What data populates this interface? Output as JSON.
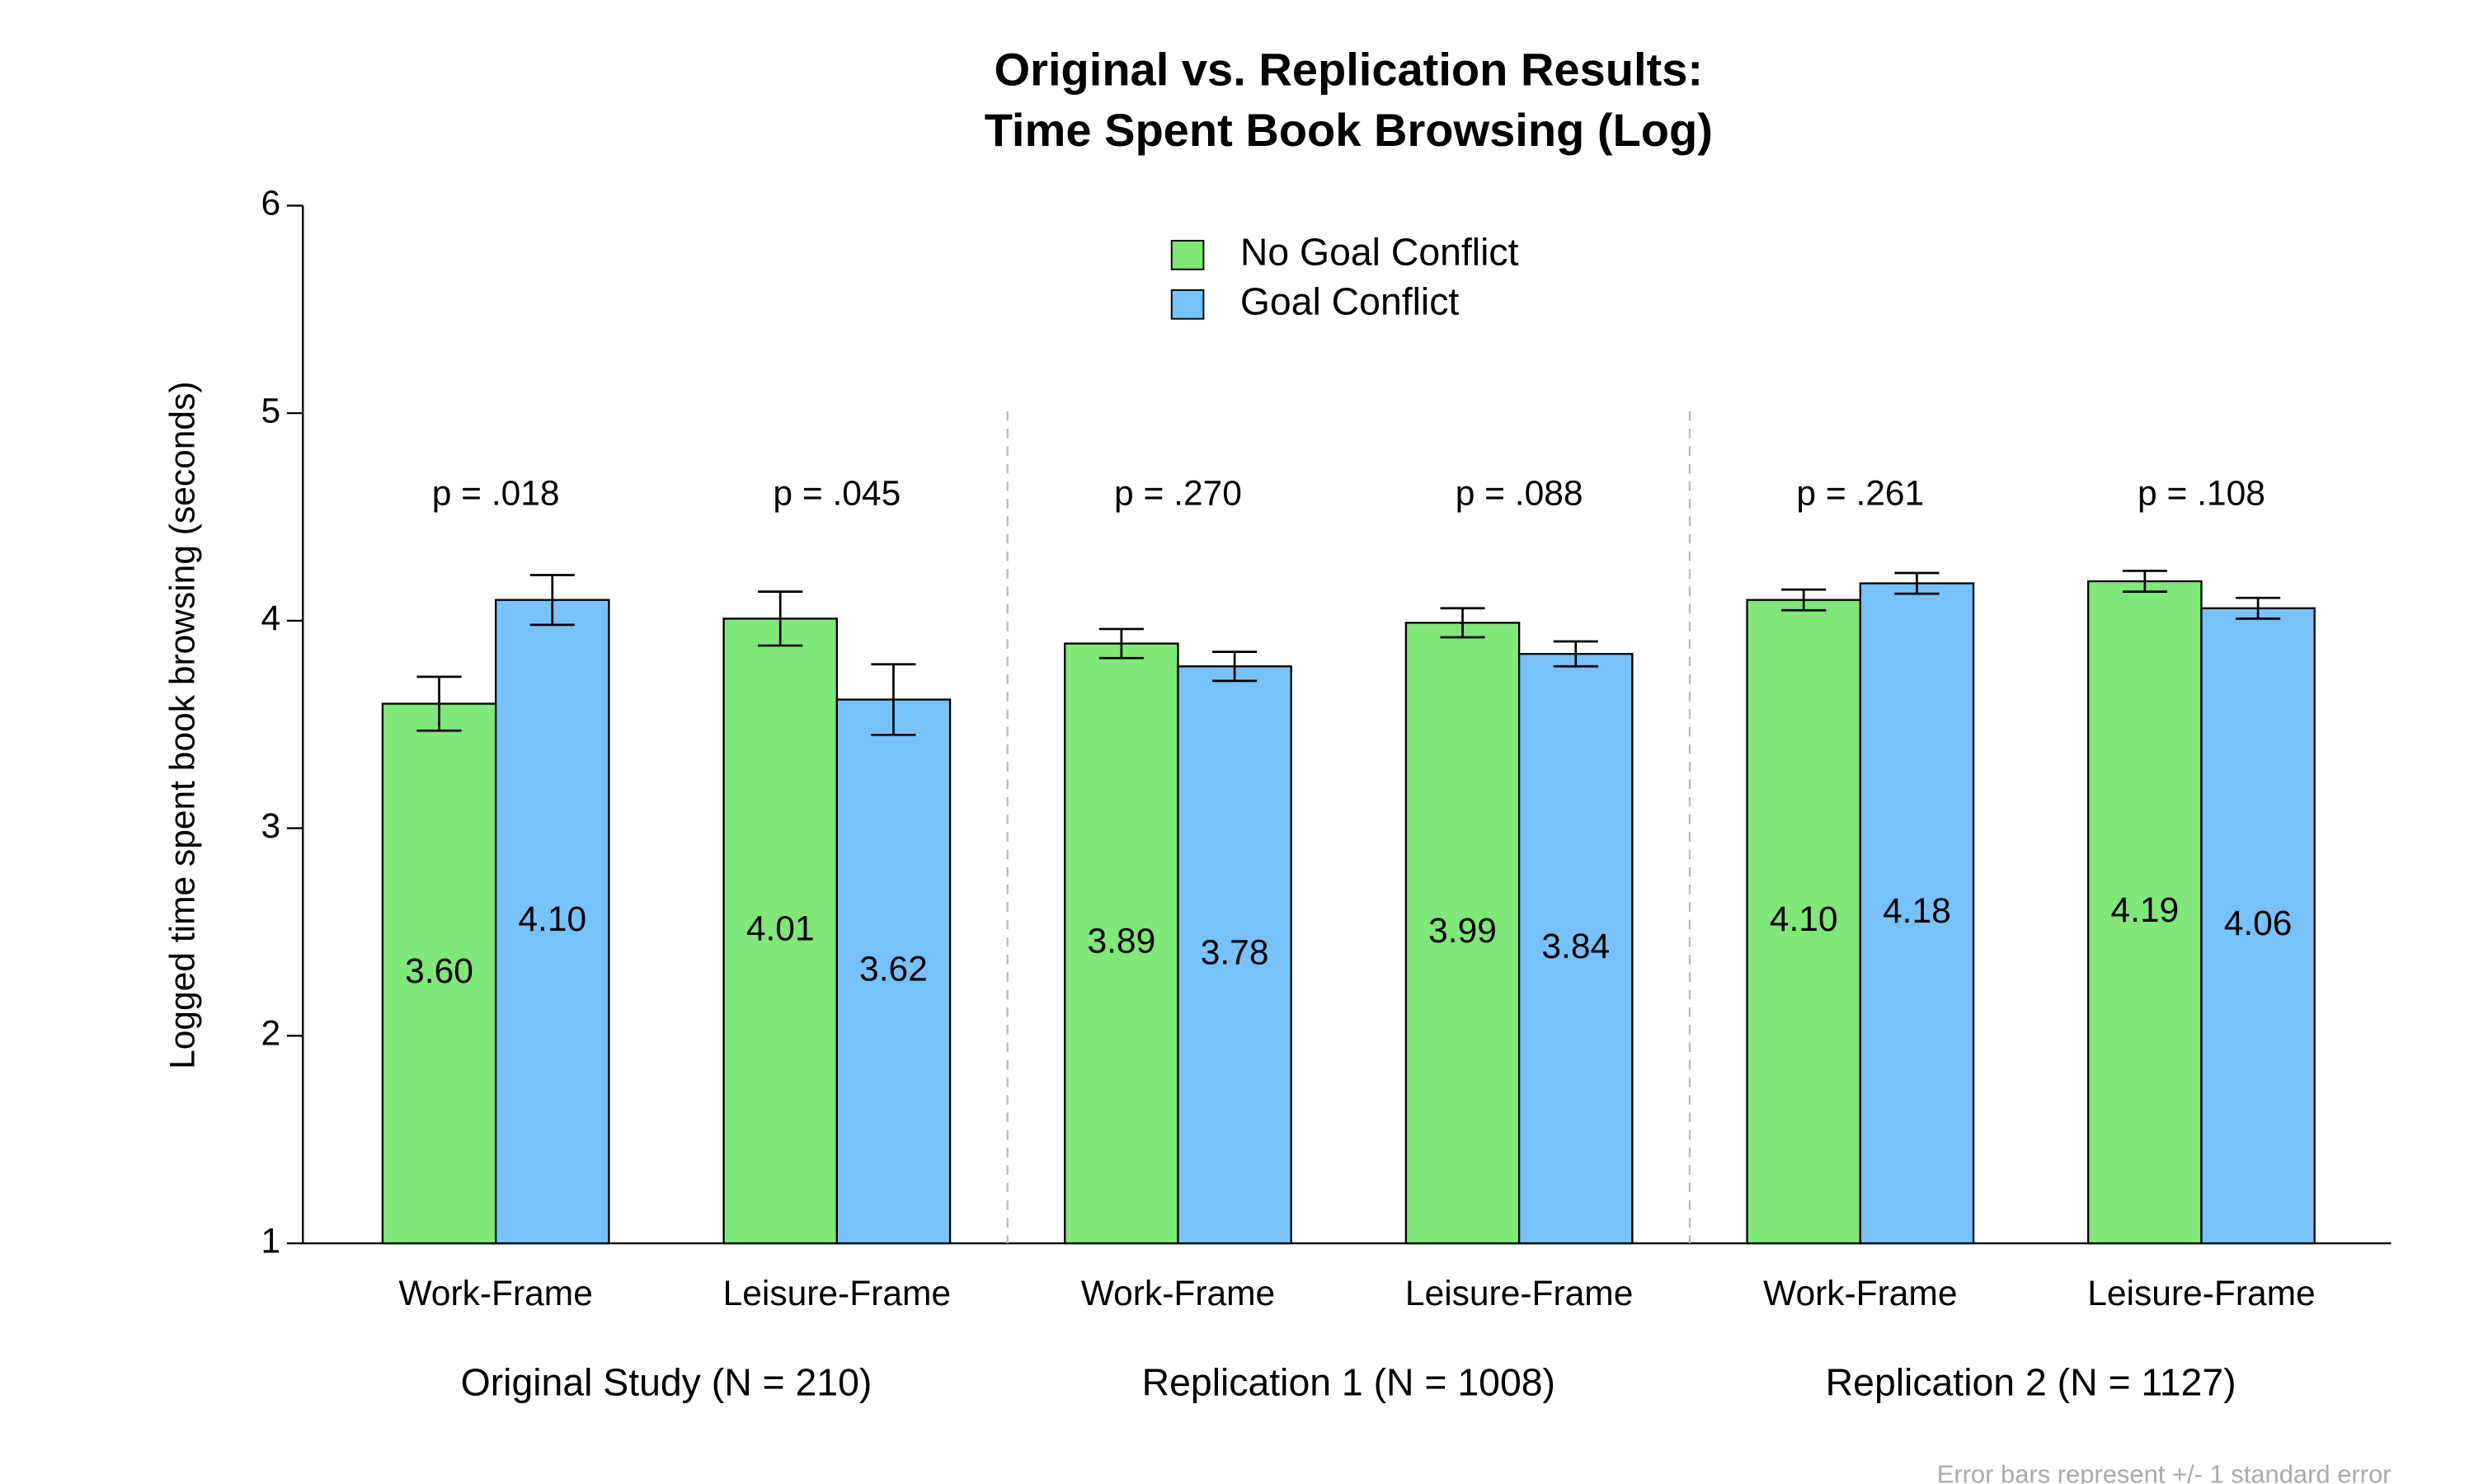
{
  "chart_data": {
    "type": "bar",
    "title": [
      "Original vs. Replication Results:",
      "Time Spent Book Browsing (Log)"
    ],
    "y_label": "Logged time spent book browsing (seconds)",
    "groups": [
      "Original Study (N = 210)",
      "Replication 1 (N = 1008)",
      "Replication 2 (N = 1127)"
    ],
    "categories": [
      "Work-Frame",
      "Leisure-Frame",
      "Work-Frame",
      "Leisure-Frame",
      "Work-Frame",
      "Leisure-Frame"
    ],
    "p_values": [
      "p = .018",
      "p = .045",
      "p = .270",
      "p = .088",
      "p = .261",
      "p = .108"
    ],
    "series": [
      {
        "name": "No Goal Conflict",
        "color": "#80e878",
        "values": [
          3.6,
          4.01,
          3.89,
          3.99,
          4.1,
          4.19
        ],
        "value_labels": [
          "3.60",
          "4.01",
          "3.89",
          "3.99",
          "4.10",
          "4.19"
        ],
        "errors": [
          0.13,
          0.13,
          0.07,
          0.07,
          0.05,
          0.05
        ]
      },
      {
        "name": "Goal Conflict",
        "color": "#78c2fc",
        "values": [
          4.1,
          3.62,
          3.78,
          3.84,
          4.18,
          4.06
        ],
        "value_labels": [
          "4.10",
          "3.62",
          "3.78",
          "3.84",
          "4.18",
          "4.06"
        ],
        "errors": [
          0.12,
          0.17,
          0.07,
          0.06,
          0.05,
          0.05
        ]
      }
    ],
    "ylim": [
      1,
      6
    ],
    "yticks": [
      1,
      2,
      3,
      4,
      5,
      6
    ],
    "legend": "top-center",
    "note": "Error bars represent +/- 1 standard error"
  }
}
